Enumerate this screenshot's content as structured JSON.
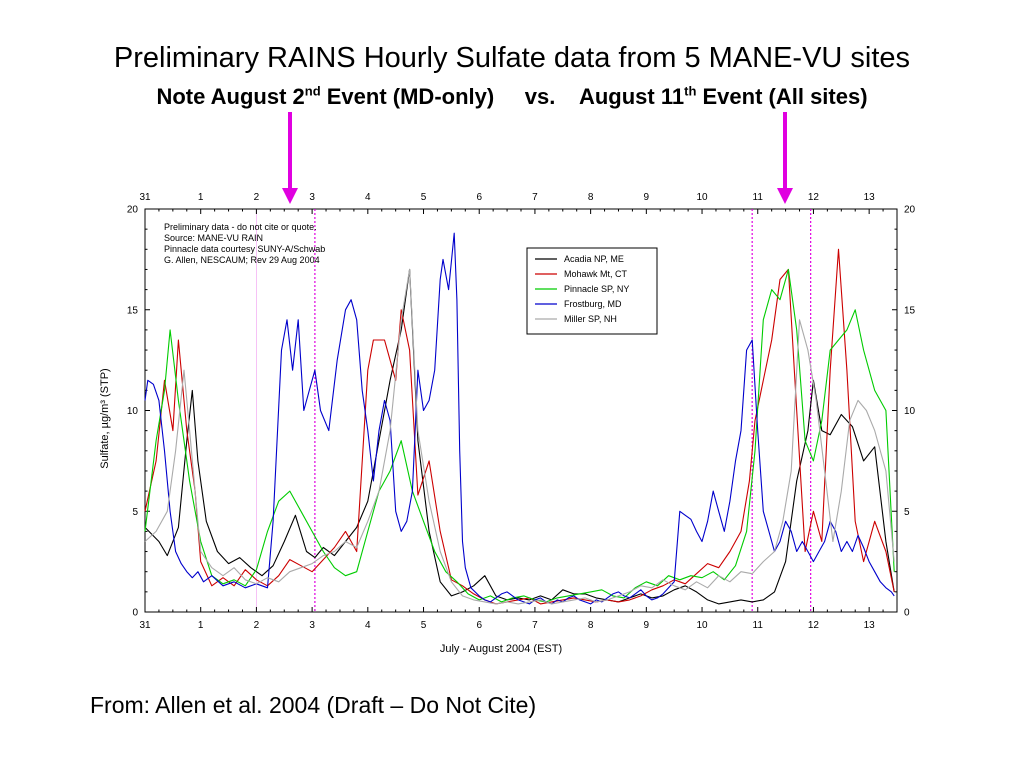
{
  "slide": {
    "title": "Preliminary RAINS Hourly Sulfate data from 5 MANE-VU sites",
    "subtitle": {
      "part1": "Note August 2",
      "sup1": "nd",
      "part2": " Event (MD-only)     vs.    August 11",
      "sup2": "th",
      "part3": " Event (All sites)"
    },
    "source": "From: Allen et al. 2004 (Draft – Do Not Cite)",
    "arrow_color": "#e000e0"
  },
  "chart_data": {
    "type": "line",
    "xlabel": "July - August 2004 (EST)",
    "ylabel": "Sulfate, µg/m³ (STP)",
    "xlim": [
      0,
      13.5
    ],
    "ylim": [
      0,
      20
    ],
    "x_tick_labels": [
      "31",
      "1",
      "2",
      "3",
      "4",
      "5",
      "6",
      "7",
      "8",
      "9",
      "10",
      "11",
      "12",
      "13"
    ],
    "y_tick_labels": [
      "0",
      "5",
      "10",
      "15",
      "20"
    ],
    "note_lines": [
      "Preliminary data - do not cite or quote.",
      "Source: MANE-VU RAIN",
      "Pinnacle data courtesy SUNY-A/Schwab",
      "G. Allen, NESCAUM;  Rev 29 Aug 2004"
    ],
    "event_markers": [
      3.05,
      10.9,
      11.95
    ],
    "legend_position": "upper-right-center",
    "series": [
      {
        "name": "Acadia NP, ME",
        "color": "#000000",
        "x": [
          0,
          0.25,
          0.4,
          0.6,
          0.75,
          0.85,
          0.95,
          1.1,
          1.3,
          1.5,
          1.7,
          1.9,
          2.1,
          2.3,
          2.5,
          2.7,
          2.9,
          3.05,
          3.2,
          3.4,
          3.6,
          3.8,
          4.0,
          4.2,
          4.4,
          4.6,
          4.75,
          4.9,
          5.1,
          5.3,
          5.5,
          5.7,
          5.9,
          6.1,
          6.3,
          6.5,
          6.7,
          6.9,
          7.1,
          7.3,
          7.5,
          7.7,
          7.9,
          8.1,
          8.3,
          8.5,
          8.7,
          8.9,
          9.1,
          9.3,
          9.5,
          9.7,
          9.9,
          10.1,
          10.3,
          10.5,
          10.7,
          10.9,
          11.1,
          11.3,
          11.5,
          11.7,
          11.9,
          12.0,
          12.15,
          12.3,
          12.5,
          12.7,
          12.9,
          13.1,
          13.3,
          13.45
        ],
        "y": [
          4.2,
          3.5,
          2.8,
          4.2,
          8.5,
          11.0,
          7.5,
          4.5,
          3.0,
          2.4,
          2.7,
          2.2,
          1.8,
          2.3,
          3.5,
          4.8,
          3.0,
          2.7,
          3.2,
          2.8,
          3.5,
          4.2,
          5.5,
          8.5,
          11.5,
          14.0,
          17.0,
          8.5,
          4.0,
          1.5,
          0.8,
          1.0,
          1.3,
          1.8,
          0.8,
          0.6,
          0.7,
          0.6,
          0.8,
          0.6,
          1.1,
          0.9,
          0.9,
          0.7,
          0.6,
          0.5,
          0.7,
          0.9,
          0.7,
          0.8,
          1.1,
          1.3,
          1.0,
          0.6,
          0.4,
          0.5,
          0.6,
          0.5,
          0.6,
          1.0,
          2.5,
          6.5,
          9.0,
          11.5,
          9.0,
          8.8,
          9.8,
          9.2,
          7.5,
          8.2,
          3.5,
          1.0
        ]
      },
      {
        "name": "Mohawk Mt, CT",
        "color": "#cc0000",
        "x": [
          0,
          0.2,
          0.35,
          0.5,
          0.6,
          0.75,
          0.9,
          1.0,
          1.2,
          1.4,
          1.6,
          1.8,
          2.0,
          2.2,
          2.4,
          2.6,
          2.8,
          3.0,
          3.2,
          3.4,
          3.6,
          3.8,
          4.0,
          4.1,
          4.3,
          4.5,
          4.6,
          4.75,
          4.9,
          5.1,
          5.3,
          5.5,
          5.7,
          5.9,
          6.1,
          6.3,
          6.5,
          6.7,
          6.9,
          7.1,
          7.3,
          7.5,
          7.7,
          7.9,
          8.1,
          8.3,
          8.5,
          8.7,
          8.9,
          9.1,
          9.3,
          9.5,
          9.7,
          9.9,
          10.1,
          10.3,
          10.5,
          10.7,
          10.85,
          10.95,
          11.1,
          11.25,
          11.4,
          11.55,
          11.7,
          11.85,
          12.0,
          12.15,
          12.3,
          12.45,
          12.6,
          12.75,
          12.9,
          13.1,
          13.3,
          13.45
        ],
        "y": [
          5.0,
          7.5,
          11.5,
          9.0,
          13.5,
          9.0,
          6.0,
          2.5,
          1.3,
          1.7,
          1.3,
          2.1,
          1.6,
          1.3,
          1.8,
          2.6,
          2.3,
          2.0,
          2.6,
          3.2,
          4.0,
          3.0,
          12.0,
          13.5,
          13.5,
          11.5,
          15.0,
          13.0,
          5.8,
          7.5,
          4.0,
          1.6,
          1.3,
          0.9,
          0.6,
          0.4,
          0.5,
          0.6,
          0.7,
          0.4,
          0.5,
          0.6,
          0.7,
          0.6,
          0.5,
          0.6,
          0.5,
          0.6,
          0.8,
          1.1,
          1.3,
          1.6,
          1.4,
          1.9,
          2.4,
          2.2,
          3.0,
          4.0,
          6.5,
          9.5,
          11.5,
          13.5,
          16.5,
          17.0,
          10.0,
          3.0,
          5.0,
          3.5,
          12.0,
          18.0,
          12.0,
          4.5,
          2.5,
          4.5,
          3.0,
          1.0
        ]
      },
      {
        "name": "Pinnacle SP, NY",
        "color": "#00cc00",
        "x": [
          0,
          0.2,
          0.35,
          0.45,
          0.6,
          0.8,
          1.0,
          1.2,
          1.4,
          1.6,
          1.8,
          2.0,
          2.2,
          2.4,
          2.6,
          2.8,
          3.0,
          3.2,
          3.4,
          3.6,
          3.8,
          4.0,
          4.2,
          4.4,
          4.6,
          4.8,
          5.0,
          5.2,
          5.4,
          5.6,
          5.8,
          6.0,
          6.2,
          6.4,
          6.6,
          6.8,
          7.0,
          7.2,
          7.4,
          7.6,
          7.8,
          8.0,
          8.2,
          8.4,
          8.6,
          8.8,
          9.0,
          9.2,
          9.4,
          9.6,
          9.8,
          10.0,
          10.2,
          10.4,
          10.6,
          10.8,
          10.95,
          11.1,
          11.25,
          11.4,
          11.55,
          11.7,
          11.85,
          12.0,
          12.15,
          12.3,
          12.45,
          12.6,
          12.75,
          12.9,
          13.1,
          13.3,
          13.45
        ],
        "y": [
          4.0,
          8.5,
          11.0,
          14.0,
          10.5,
          6.5,
          3.5,
          1.8,
          1.4,
          1.6,
          1.3,
          2.1,
          4.0,
          5.5,
          6.0,
          5.0,
          4.0,
          3.0,
          2.2,
          1.8,
          2.0,
          4.0,
          6.0,
          7.0,
          8.5,
          6.0,
          4.5,
          3.0,
          2.0,
          1.5,
          0.9,
          0.6,
          0.8,
          0.5,
          0.7,
          0.8,
          0.6,
          0.5,
          0.7,
          0.8,
          0.9,
          1.0,
          1.1,
          0.8,
          0.7,
          1.2,
          1.5,
          1.3,
          1.8,
          1.6,
          1.8,
          1.7,
          2.0,
          1.6,
          2.3,
          4.0,
          8.0,
          14.5,
          16.0,
          15.5,
          17.0,
          14.0,
          8.5,
          7.5,
          9.5,
          13.0,
          13.5,
          14.0,
          15.0,
          13.0,
          11.0,
          10.0,
          2.0
        ]
      },
      {
        "name": "Frostburg, MD",
        "color": "#0000cc",
        "x": [
          0,
          0.05,
          0.15,
          0.25,
          0.35,
          0.45,
          0.55,
          0.65,
          0.75,
          0.85,
          0.95,
          1.05,
          1.2,
          1.4,
          1.6,
          1.8,
          2.0,
          2.2,
          2.3,
          2.45,
          2.55,
          2.65,
          2.75,
          2.85,
          2.95,
          3.05,
          3.15,
          3.3,
          3.45,
          3.6,
          3.7,
          3.8,
          3.9,
          4.0,
          4.1,
          4.2,
          4.3,
          4.4,
          4.5,
          4.6,
          4.7,
          4.8,
          4.9,
          5.0,
          5.1,
          5.2,
          5.3,
          5.35,
          5.45,
          5.55,
          5.6,
          5.65,
          5.7,
          5.75,
          5.85,
          6.0,
          6.1,
          6.2,
          6.3,
          6.4,
          6.5,
          6.6,
          6.7,
          6.8,
          6.9,
          7.0,
          7.1,
          7.2,
          7.3,
          7.4,
          7.5,
          7.6,
          7.7,
          7.8,
          7.9,
          8.0,
          8.1,
          8.2,
          8.3,
          8.4,
          8.5,
          8.6,
          8.7,
          8.8,
          8.9,
          9.0,
          9.1,
          9.2,
          9.3,
          9.4,
          9.5,
          9.6,
          9.7,
          9.8,
          9.9,
          10.0,
          10.1,
          10.2,
          10.3,
          10.4,
          10.5,
          10.6,
          10.7,
          10.8,
          10.9,
          11.0,
          11.1,
          11.2,
          11.3,
          11.4,
          11.5,
          11.6,
          11.7,
          11.8,
          11.9,
          12.0,
          12.1,
          12.2,
          12.3,
          12.4,
          12.5,
          12.6,
          12.7,
          12.8,
          12.9,
          13.0,
          13.1,
          13.2,
          13.3,
          13.4,
          13.45
        ],
        "y": [
          10.5,
          11.5,
          11.3,
          10.5,
          8.0,
          5.0,
          3.0,
          2.4,
          2.0,
          1.7,
          2.0,
          1.5,
          1.8,
          1.3,
          1.5,
          1.2,
          1.4,
          1.2,
          4.5,
          13.0,
          14.5,
          12.0,
          14.5,
          10.0,
          11.0,
          12.0,
          10.0,
          9.0,
          12.5,
          15.0,
          15.5,
          14.5,
          11.0,
          9.0,
          6.5,
          9.0,
          10.5,
          9.5,
          5.0,
          4.0,
          4.5,
          6.0,
          12.0,
          10.0,
          10.5,
          12.0,
          16.5,
          17.5,
          16.0,
          18.8,
          15.5,
          8.0,
          3.5,
          2.2,
          1.2,
          0.8,
          0.6,
          0.5,
          0.7,
          0.9,
          1.0,
          0.8,
          0.6,
          0.5,
          0.4,
          0.6,
          0.7,
          0.5,
          0.4,
          0.6,
          0.5,
          0.7,
          0.8,
          0.6,
          0.5,
          0.4,
          0.6,
          0.5,
          0.7,
          0.9,
          1.0,
          0.8,
          0.7,
          0.9,
          1.1,
          0.8,
          0.6,
          0.7,
          0.9,
          1.2,
          1.5,
          5.0,
          4.8,
          4.6,
          4.0,
          3.5,
          4.5,
          6.0,
          5.0,
          4.0,
          5.5,
          7.5,
          9.0,
          13.0,
          13.5,
          9.0,
          5.0,
          4.0,
          3.0,
          3.5,
          4.5,
          4.0,
          3.0,
          3.5,
          3.0,
          2.5,
          3.0,
          3.5,
          4.5,
          4.0,
          3.0,
          3.5,
          3.0,
          3.8,
          3.2,
          2.5,
          2.0,
          1.5,
          1.2,
          1.0,
          0.8
        ]
      },
      {
        "name": "Miller SP, NH",
        "color": "#aaaaaa",
        "x": [
          0,
          0.2,
          0.4,
          0.55,
          0.7,
          0.8,
          0.9,
          1.0,
          1.2,
          1.4,
          1.6,
          1.8,
          2.0,
          2.2,
          2.4,
          2.6,
          2.8,
          3.0,
          3.2,
          3.4,
          3.6,
          3.8,
          4.0,
          4.2,
          4.4,
          4.6,
          4.75,
          4.9,
          5.1,
          5.3,
          5.5,
          5.7,
          5.9,
          6.1,
          6.3,
          6.5,
          6.7,
          6.9,
          7.1,
          7.3,
          7.5,
          7.7,
          7.9,
          8.1,
          8.3,
          8.5,
          8.7,
          8.9,
          9.1,
          9.3,
          9.5,
          9.7,
          9.9,
          10.1,
          10.3,
          10.5,
          10.7,
          10.9,
          11.1,
          11.3,
          11.45,
          11.6,
          11.75,
          11.9,
          12.05,
          12.2,
          12.35,
          12.5,
          12.65,
          12.8,
          12.95,
          13.1,
          13.3,
          13.45
        ],
        "y": [
          3.5,
          4.0,
          5.0,
          8.0,
          12.0,
          9.0,
          6.0,
          3.0,
          2.2,
          1.8,
          2.2,
          1.6,
          1.4,
          1.7,
          1.5,
          2.0,
          2.2,
          2.4,
          2.8,
          3.0,
          3.5,
          3.2,
          4.5,
          6.0,
          9.0,
          14.5,
          17.0,
          9.0,
          5.5,
          3.0,
          1.5,
          0.8,
          0.6,
          0.5,
          0.4,
          0.5,
          0.4,
          0.5,
          0.6,
          0.4,
          0.5,
          0.6,
          0.7,
          0.5,
          0.6,
          0.8,
          1.0,
          1.3,
          1.2,
          1.6,
          1.3,
          1.1,
          1.5,
          1.2,
          1.8,
          1.5,
          2.0,
          1.9,
          2.5,
          3.0,
          4.5,
          7.0,
          14.5,
          13.0,
          10.5,
          7.0,
          3.5,
          6.0,
          9.5,
          10.5,
          10.0,
          9.0,
          7.0,
          2.5
        ]
      }
    ]
  }
}
